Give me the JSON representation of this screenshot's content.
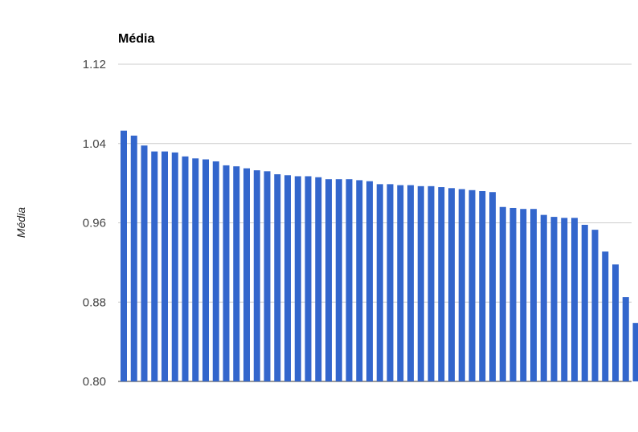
{
  "chart_data": {
    "type": "bar",
    "title": "Média",
    "xlabel": "",
    "ylabel": "Média",
    "ylim": [
      0.8,
      1.12
    ],
    "yticks": [
      "0.80",
      "0.88",
      "0.96",
      "1.04",
      "1.12"
    ],
    "grid": true,
    "legend": "none",
    "bar_color": "#3366cc",
    "values": [
      1.053,
      1.048,
      1.038,
      1.032,
      1.032,
      1.031,
      1.027,
      1.025,
      1.024,
      1.022,
      1.018,
      1.017,
      1.015,
      1.013,
      1.012,
      1.009,
      1.008,
      1.007,
      1.007,
      1.006,
      1.004,
      1.004,
      1.004,
      1.003,
      1.002,
      0.999,
      0.999,
      0.998,
      0.998,
      0.997,
      0.997,
      0.996,
      0.995,
      0.994,
      0.993,
      0.992,
      0.991,
      0.976,
      0.975,
      0.974,
      0.974,
      0.968,
      0.966,
      0.965,
      0.965,
      0.958,
      0.953,
      0.931,
      0.918,
      0.885,
      0.859
    ]
  }
}
